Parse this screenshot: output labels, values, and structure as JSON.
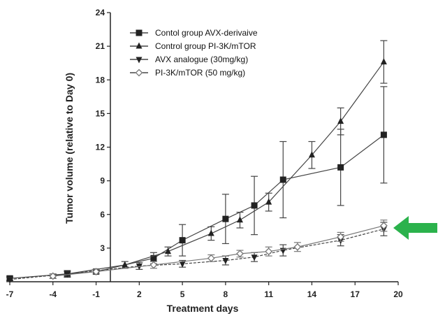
{
  "chart_data": {
    "type": "line",
    "xlabel": "Treatment days",
    "ylabel": "Tumor volume (relative to Day 0)",
    "xlim": [
      -7,
      20
    ],
    "ylim": [
      0,
      24
    ],
    "x_ticks": [
      -7,
      -4,
      -1,
      2,
      5,
      8,
      11,
      14,
      17,
      20
    ],
    "y_ticks": [
      3,
      6,
      9,
      12,
      15,
      18,
      21,
      24
    ],
    "legend_position": "top-left",
    "grid": false,
    "series": [
      {
        "name": "Contol group AVX-derivaive",
        "marker": "square",
        "color": "#444444",
        "points": [
          {
            "x": -7,
            "y": 0.3,
            "err": 0.2
          },
          {
            "x": -3,
            "y": 0.7,
            "err": 0.3
          },
          {
            "x": -1,
            "y": 0.9,
            "err": 0.2
          },
          {
            "x": 3,
            "y": 2.1,
            "err": 0.5
          },
          {
            "x": 5,
            "y": 3.7,
            "err": 1.4
          },
          {
            "x": 8,
            "y": 5.6,
            "err": 2.2
          },
          {
            "x": 10,
            "y": 6.8,
            "err": 2.6
          },
          {
            "x": 12,
            "y": 9.1,
            "err": 3.4
          },
          {
            "x": 16,
            "y": 10.2,
            "err": 3.4
          },
          {
            "x": 19,
            "y": 13.1,
            "err": 4.3
          }
        ]
      },
      {
        "name": "Control group PI-3K/mTOR",
        "marker": "triangle-up",
        "color": "#444444",
        "points": [
          {
            "x": -4,
            "y": 0.5,
            "err": 0.2
          },
          {
            "x": 1,
            "y": 1.5,
            "err": 0.3
          },
          {
            "x": 4,
            "y": 2.7,
            "err": 0.4
          },
          {
            "x": 7,
            "y": 4.3,
            "err": 0.6
          },
          {
            "x": 9,
            "y": 5.5,
            "err": 0.7
          },
          {
            "x": 11,
            "y": 7.1,
            "err": 0.8
          },
          {
            "x": 14,
            "y": 11.3,
            "err": 1.2
          },
          {
            "x": 16,
            "y": 14.3,
            "err": 1.2
          },
          {
            "x": 19,
            "y": 19.6,
            "err": 1.9
          }
        ]
      },
      {
        "name": "AVX analogue (30mg/kg)",
        "marker": "triangle-down",
        "color": "#444444",
        "points": [
          {
            "x": -7,
            "y": 0.2,
            "err": 0.2
          },
          {
            "x": -3,
            "y": 0.7,
            "err": 0.2
          },
          {
            "x": 2,
            "y": 1.4,
            "err": 0.3
          },
          {
            "x": 5,
            "y": 1.6,
            "err": 0.3
          },
          {
            "x": 8,
            "y": 1.9,
            "err": 0.4
          },
          {
            "x": 10,
            "y": 2.2,
            "err": 0.4
          },
          {
            "x": 12,
            "y": 2.8,
            "err": 0.5
          },
          {
            "x": 16,
            "y": 3.7,
            "err": 0.5
          },
          {
            "x": 19,
            "y": 4.7,
            "err": 0.6
          }
        ]
      },
      {
        "name": "PI-3K/mTOR (50 mg/kg)",
        "marker": "diamond-open",
        "color": "#777777",
        "points": [
          {
            "x": -4,
            "y": 0.5,
            "err": 0.2
          },
          {
            "x": -1,
            "y": 0.9,
            "err": 0.2
          },
          {
            "x": 3,
            "y": 1.5,
            "err": 0.3
          },
          {
            "x": 7,
            "y": 2.1,
            "err": 0.3
          },
          {
            "x": 9,
            "y": 2.5,
            "err": 0.3
          },
          {
            "x": 11,
            "y": 2.7,
            "err": 0.4
          },
          {
            "x": 13,
            "y": 3.1,
            "err": 0.4
          },
          {
            "x": 16,
            "y": 4.0,
            "err": 0.4
          },
          {
            "x": 19,
            "y": 5.0,
            "err": 0.5
          }
        ]
      }
    ],
    "annotations": [
      {
        "type": "arrow",
        "shape": "block-arrow",
        "direction": "left",
        "color": "#2bb24c",
        "points_to_y": 4.8
      }
    ]
  }
}
